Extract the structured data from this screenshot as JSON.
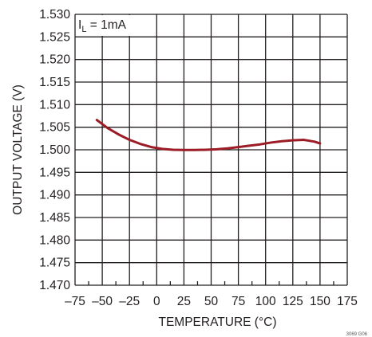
{
  "chart_data": {
    "type": "line",
    "title": "",
    "xlabel": "TEMPERATURE (°C)",
    "ylabel": "OUTPUT VOLTAGE (V)",
    "annotation": {
      "main": "I",
      "sub": "L",
      "rest": " = 1mA"
    },
    "figure_id": "3069 G06",
    "xlim": [
      -75,
      175
    ],
    "ylim": [
      1.47,
      1.53
    ],
    "x_ticks": [
      -75,
      -50,
      -25,
      0,
      25,
      50,
      75,
      100,
      125,
      150,
      175
    ],
    "x_tick_labels": [
      "–75",
      "–50",
      "–25",
      "0",
      "25",
      "50",
      "75",
      "100",
      "125",
      "150",
      "175"
    ],
    "x_minor_ticks": [
      -62.5,
      -37.5,
      -12.5,
      12.5,
      37.5,
      62.5,
      87.5,
      112.5,
      137.5,
      162.5
    ],
    "y_ticks": [
      1.47,
      1.475,
      1.48,
      1.485,
      1.49,
      1.495,
      1.5,
      1.505,
      1.51,
      1.515,
      1.52,
      1.525,
      1.53
    ],
    "y_tick_labels": [
      "1.470",
      "1.475",
      "1.480",
      "1.485",
      "1.490",
      "1.495",
      "1.500",
      "1.505",
      "1.510",
      "1.515",
      "1.520",
      "1.525",
      "1.530"
    ],
    "grid": true,
    "line_color": "#9b1c25",
    "series": [
      {
        "x": [
          -55,
          -45,
          -35,
          -25,
          -15,
          -5,
          5,
          15,
          25,
          35,
          45,
          55,
          65,
          75,
          85,
          95,
          105,
          115,
          125,
          135,
          145,
          150
        ],
        "y": [
          1.5066,
          1.5048,
          1.5034,
          1.5022,
          1.5013,
          1.5006,
          1.5002,
          1.5,
          1.49995,
          1.49995,
          1.5,
          1.5001,
          1.5003,
          1.5006,
          1.5009,
          1.5012,
          1.5016,
          1.5019,
          1.5021,
          1.5022,
          1.5018,
          1.5014
        ]
      }
    ]
  }
}
